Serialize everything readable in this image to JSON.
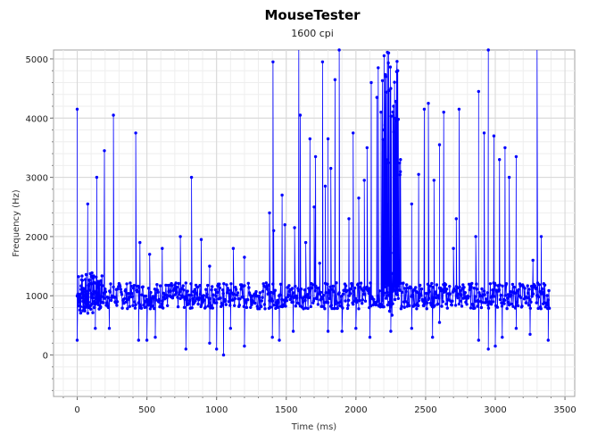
{
  "chart_data": {
    "type": "scatter",
    "title": "MouseTester",
    "subtitle": "1600 cpi",
    "xlabel": "Time (ms)",
    "ylabel": "Frequency (Hz)",
    "xlim": [
      -170,
      3570
    ],
    "ylim": [
      -700,
      5150
    ],
    "x_ticks": [
      0,
      500,
      1000,
      1500,
      2000,
      2500,
      3000,
      3500
    ],
    "y_ticks": [
      0,
      1000,
      2000,
      3000,
      4000,
      5000
    ],
    "grid": true,
    "series_color": "#0000ff",
    "spikes": [
      {
        "x": 0,
        "y": 4150
      },
      {
        "x": 75,
        "y": 2550
      },
      {
        "x": 140,
        "y": 3000
      },
      {
        "x": 195,
        "y": 3450
      },
      {
        "x": 260,
        "y": 4050
      },
      {
        "x": 420,
        "y": 3750
      },
      {
        "x": 450,
        "y": 1900
      },
      {
        "x": 520,
        "y": 1700
      },
      {
        "x": 610,
        "y": 1800
      },
      {
        "x": 740,
        "y": 2000
      },
      {
        "x": 820,
        "y": 3000
      },
      {
        "x": 890,
        "y": 1950
      },
      {
        "x": 950,
        "y": 1500
      },
      {
        "x": 1120,
        "y": 1800
      },
      {
        "x": 1200,
        "y": 1650
      },
      {
        "x": 1380,
        "y": 2400
      },
      {
        "x": 1405,
        "y": 4950
      },
      {
        "x": 1410,
        "y": 2100
      },
      {
        "x": 1470,
        "y": 2700
      },
      {
        "x": 1490,
        "y": 2200
      },
      {
        "x": 1560,
        "y": 2150
      },
      {
        "x": 1590,
        "y": 5200
      },
      {
        "x": 1600,
        "y": 4050
      },
      {
        "x": 1640,
        "y": 1900
      },
      {
        "x": 1670,
        "y": 3650
      },
      {
        "x": 1700,
        "y": 2500
      },
      {
        "x": 1710,
        "y": 3350
      },
      {
        "x": 1740,
        "y": 1550
      },
      {
        "x": 1760,
        "y": 4950
      },
      {
        "x": 1780,
        "y": 2850
      },
      {
        "x": 1800,
        "y": 3650
      },
      {
        "x": 1820,
        "y": 3150
      },
      {
        "x": 1850,
        "y": 4650
      },
      {
        "x": 1880,
        "y": 5150
      },
      {
        "x": 1950,
        "y": 2300
      },
      {
        "x": 1980,
        "y": 3750
      },
      {
        "x": 2020,
        "y": 2650
      },
      {
        "x": 2060,
        "y": 2950
      },
      {
        "x": 2080,
        "y": 3500
      },
      {
        "x": 2110,
        "y": 4600
      },
      {
        "x": 2150,
        "y": 4350
      },
      {
        "x": 2160,
        "y": 4850
      },
      {
        "x": 2180,
        "y": 4100
      },
      {
        "x": 2200,
        "y": 3800
      },
      {
        "x": 2215,
        "y": 4700
      },
      {
        "x": 2235,
        "y": 5100
      },
      {
        "x": 2250,
        "y": 4500
      },
      {
        "x": 2270,
        "y": 4200
      },
      {
        "x": 2290,
        "y": 3950
      },
      {
        "x": 2300,
        "y": 4800
      },
      {
        "x": 2320,
        "y": 3300
      },
      {
        "x": 2400,
        "y": 2550
      },
      {
        "x": 2450,
        "y": 3050
      },
      {
        "x": 2490,
        "y": 4150
      },
      {
        "x": 2520,
        "y": 4250
      },
      {
        "x": 2560,
        "y": 2950
      },
      {
        "x": 2600,
        "y": 3550
      },
      {
        "x": 2630,
        "y": 4100
      },
      {
        "x": 2700,
        "y": 1800
      },
      {
        "x": 2720,
        "y": 2300
      },
      {
        "x": 2740,
        "y": 4150
      },
      {
        "x": 2860,
        "y": 2000
      },
      {
        "x": 2880,
        "y": 4450
      },
      {
        "x": 2920,
        "y": 3750
      },
      {
        "x": 2950,
        "y": 5150
      },
      {
        "x": 2990,
        "y": 3700
      },
      {
        "x": 3030,
        "y": 3300
      },
      {
        "x": 3070,
        "y": 3500
      },
      {
        "x": 3100,
        "y": 3000
      },
      {
        "x": 3150,
        "y": 3350
      },
      {
        "x": 3270,
        "y": 1600
      },
      {
        "x": 3300,
        "y": 5200
      },
      {
        "x": 3330,
        "y": 2000
      }
    ],
    "dips": [
      {
        "x": 0,
        "y": 250
      },
      {
        "x": 130,
        "y": 450
      },
      {
        "x": 230,
        "y": 450
      },
      {
        "x": 440,
        "y": 250
      },
      {
        "x": 500,
        "y": 250
      },
      {
        "x": 560,
        "y": 300
      },
      {
        "x": 780,
        "y": 100
      },
      {
        "x": 950,
        "y": 200
      },
      {
        "x": 1000,
        "y": 100
      },
      {
        "x": 1050,
        "y": 0
      },
      {
        "x": 1100,
        "y": 450
      },
      {
        "x": 1200,
        "y": 150
      },
      {
        "x": 1400,
        "y": 300
      },
      {
        "x": 1450,
        "y": 250
      },
      {
        "x": 1550,
        "y": 400
      },
      {
        "x": 1800,
        "y": 400
      },
      {
        "x": 1900,
        "y": 400
      },
      {
        "x": 2000,
        "y": 450
      },
      {
        "x": 2100,
        "y": 300
      },
      {
        "x": 2250,
        "y": 400
      },
      {
        "x": 2400,
        "y": 450
      },
      {
        "x": 2550,
        "y": 300
      },
      {
        "x": 2600,
        "y": 550
      },
      {
        "x": 2880,
        "y": 250
      },
      {
        "x": 2950,
        "y": 100
      },
      {
        "x": 3000,
        "y": 150
      },
      {
        "x": 3050,
        "y": 300
      },
      {
        "x": 3150,
        "y": 450
      },
      {
        "x": 3250,
        "y": 350
      },
      {
        "x": 3380,
        "y": 250
      }
    ],
    "dense_clusters": [
      {
        "x_start": 2190,
        "x_end": 2320,
        "y_min": 600,
        "y_max": 5150
      },
      {
        "x_start": 10,
        "x_end": 180,
        "y_min": 700,
        "y_max": 1400
      }
    ],
    "baseline_band": {
      "x_start": 0,
      "x_end": 3390,
      "center": 1000,
      "spread": 220
    }
  }
}
